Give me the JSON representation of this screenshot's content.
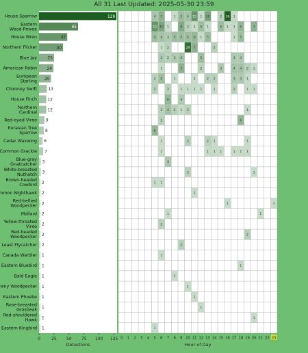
{
  "header": {
    "title": "All 31 Last Updated: 2025-05-30 23:59"
  },
  "colors": {
    "background": "#6fbf73",
    "panel": "#ffffff",
    "bar_scale_light": "#e8f5e9",
    "bar_scale_dark": "#1b5e20",
    "hour_axis_highlight": "#cddc39"
  },
  "chart_data": [
    {
      "type": "bar",
      "orientation": "horizontal",
      "categories": [
        "House Sparrow",
        "Eastern Wood-Pewee",
        "House Wren",
        "Northern Flicker",
        "Blue Jay",
        "American Robin",
        "European Starling",
        "Chimney Swift",
        "House Finch",
        "Northern Cardinal",
        "Red-eyed Vireo",
        "Eurasian Tree Sparrow",
        "Cedar Waxwing",
        "Common Grackle",
        "Blue-gray Gnatcatcher",
        "White-breasted Nuthatch",
        "Brown-headed Cowbird",
        "Common Nighthawk",
        "Red-bellied Woodpecker",
        "Mallard",
        "Yellow-throated Vireo",
        "Red-headed Woodpecker",
        "Least Flycatcher",
        "Canada Warbler",
        "Eastern Bluebird",
        "Bald Eagle",
        "Downy Woodpecker",
        "Eastern Phoebe",
        "Rose-breasted Grosbeak",
        "Red-shouldered Hawk",
        "Eastern Kingbird"
      ],
      "values": [
        129,
        65,
        47,
        40,
        25,
        24,
        20,
        13,
        12,
        12,
        9,
        8,
        6,
        7,
        3,
        3,
        2,
        2,
        2,
        2,
        2,
        2,
        2,
        1,
        1,
        1,
        1,
        1,
        1,
        1,
        1
      ],
      "xlabel": "Detections",
      "xticks": [
        0,
        25,
        50,
        75,
        100,
        125
      ],
      "xlim": [
        0,
        130
      ]
    },
    {
      "type": "heatmap",
      "x": [
        0,
        1,
        2,
        3,
        4,
        5,
        6,
        7,
        8,
        9,
        10,
        11,
        12,
        13,
        14,
        15,
        16,
        17,
        18,
        19,
        20,
        21,
        22,
        23
      ],
      "xlabel": "Hour of Day",
      "highlight_hour": 23,
      "cells": [
        [
          [
            5,
            4
          ],
          [
            6,
            7
          ],
          [
            8,
            1
          ],
          [
            9,
            5
          ],
          [
            10,
            4
          ],
          [
            11,
            15
          ],
          [
            12,
            1
          ],
          [
            13,
            10
          ],
          [
            15,
            2
          ],
          [
            16,
            36
          ],
          [
            17,
            1
          ]
        ],
        [
          [
            5,
            15
          ],
          [
            6,
            10
          ],
          [
            7,
            1
          ],
          [
            9,
            9
          ],
          [
            10,
            2
          ],
          [
            11,
            1
          ],
          [
            12,
            5
          ],
          [
            13,
            1
          ],
          [
            15,
            5
          ],
          [
            16,
            1
          ],
          [
            17,
            1
          ],
          [
            18,
            6
          ],
          [
            20,
            7
          ]
        ],
        [
          [
            5,
            5
          ],
          [
            6,
            4
          ],
          [
            7,
            3
          ],
          [
            8,
            5
          ],
          [
            9,
            5
          ],
          [
            10,
            5
          ],
          [
            11,
            6
          ],
          [
            12,
            1
          ],
          [
            13,
            5
          ],
          [
            17,
            1
          ],
          [
            18,
            5
          ]
        ],
        [
          [
            6,
            1
          ],
          [
            7,
            2
          ],
          [
            10,
            29
          ],
          [
            11,
            7
          ],
          [
            14,
            2
          ]
        ],
        [
          [
            6,
            3
          ],
          [
            7,
            2
          ],
          [
            8,
            3
          ],
          [
            9,
            4
          ],
          [
            12,
            5
          ],
          [
            17,
            3
          ],
          [
            18,
            3
          ]
        ],
        [
          [
            6,
            1
          ],
          [
            9,
            7
          ],
          [
            12,
            2
          ],
          [
            15,
            3
          ],
          [
            17,
            4
          ],
          [
            18,
            4
          ],
          [
            19,
            2
          ],
          [
            20,
            1
          ]
        ],
        [
          [
            5,
            2
          ],
          [
            6,
            5
          ],
          [
            8,
            1
          ],
          [
            11,
            1
          ],
          [
            13,
            2
          ],
          [
            14,
            2
          ],
          [
            17,
            3
          ],
          [
            18,
            3
          ],
          [
            19,
            1
          ]
        ],
        [
          [
            5,
            2
          ],
          [
            7,
            2
          ],
          [
            9,
            1
          ],
          [
            10,
            1
          ],
          [
            11,
            1
          ],
          [
            12,
            1
          ],
          [
            14,
            1
          ],
          [
            17,
            2
          ],
          [
            19,
            1
          ],
          [
            20,
            1
          ]
        ],
        [
          [
            7,
            6
          ],
          [
            9,
            3
          ]
        ],
        [
          [
            6,
            2
          ],
          [
            7,
            4
          ],
          [
            8,
            2
          ],
          [
            9,
            1
          ],
          [
            10,
            2
          ],
          [
            19,
            1
          ]
        ],
        [
          [
            6,
            2
          ],
          [
            18,
            6
          ]
        ],
        [
          [
            5,
            6
          ]
        ],
        [
          [
            6,
            1
          ],
          [
            10,
            2
          ],
          [
            13,
            2
          ],
          [
            14,
            1
          ],
          [
            19,
            1
          ]
        ],
        [
          [
            6,
            1
          ],
          [
            13,
            1
          ],
          [
            14,
            1
          ],
          [
            15,
            1
          ],
          [
            17,
            1
          ],
          [
            18,
            1
          ],
          [
            19,
            1
          ]
        ],
        [
          [
            7,
            3
          ]
        ],
        [
          [
            10,
            2
          ],
          [
            20,
            1
          ]
        ],
        [
          [
            5,
            1
          ],
          [
            6,
            1
          ]
        ],
        [
          [
            11,
            1
          ]
        ],
        [
          [
            16,
            1
          ],
          [
            23,
            1
          ]
        ],
        [
          [
            7,
            1
          ],
          [
            21,
            1
          ]
        ],
        [
          [
            6,
            2
          ]
        ],
        [
          [
            19,
            2
          ]
        ],
        [
          [
            9,
            2
          ]
        ],
        [
          [
            6,
            1
          ]
        ],
        [
          [
            18,
            1
          ]
        ],
        [
          [
            8,
            1
          ]
        ],
        [
          [
            10,
            1
          ]
        ],
        [
          [
            11,
            1
          ]
        ],
        [
          [
            12,
            1
          ]
        ],
        [
          [
            20,
            1
          ]
        ],
        [
          [
            5,
            1
          ]
        ]
      ]
    }
  ]
}
